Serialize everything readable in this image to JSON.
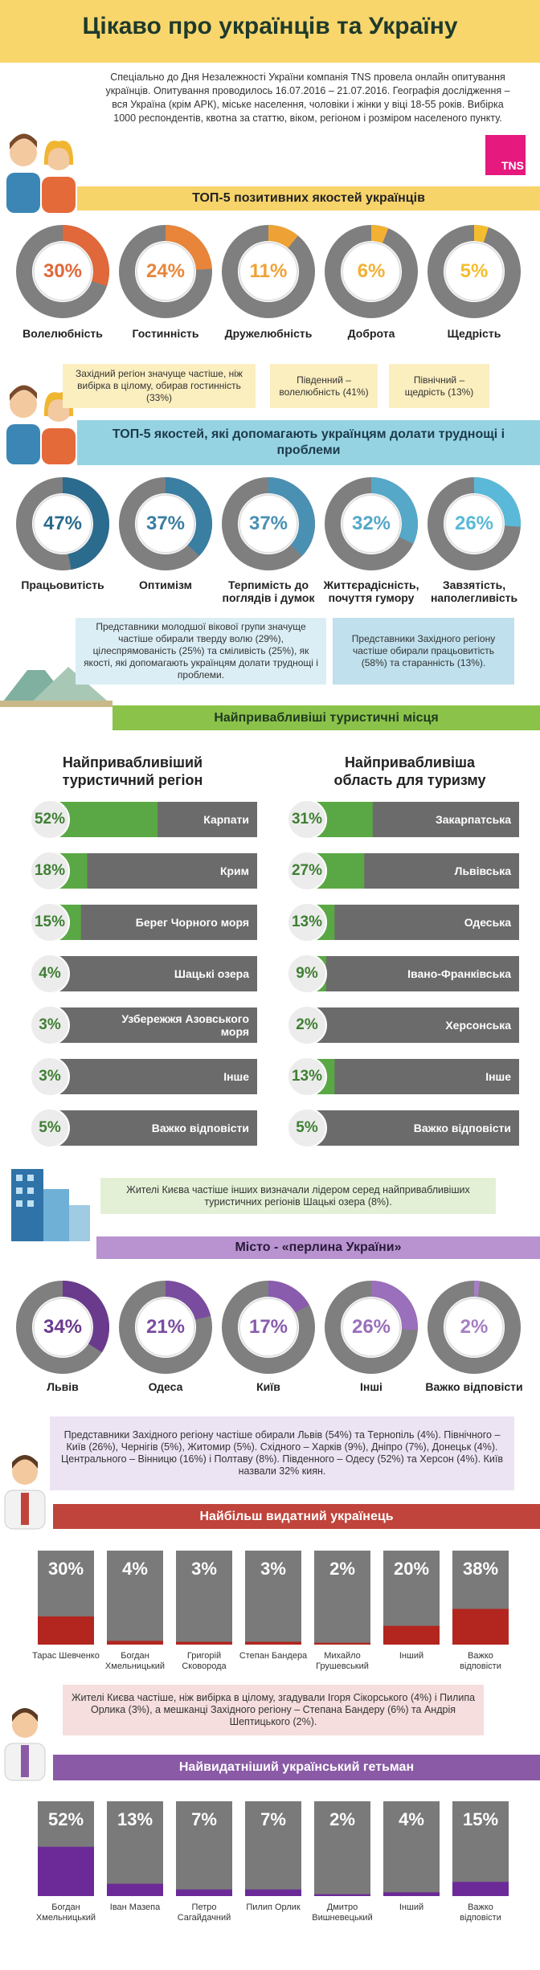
{
  "header": {
    "title": "Цікаво про українців та Україну",
    "intro": "Спеціально до Дня Незалежності України компанія TNS провела онлайн опитування українців. Опитування проводилось 16.07.2016 – 21.07.2016. Географія дослідження – вся Україна (крім АРК), міське населення, чоловіки і жінки у віці 18-55 років. Вибірка 1000 респондентів, квотна за статтю, віком, регіоном і розміром населеного пункту.",
    "logo": "TNS"
  },
  "positive_qualities": {
    "title": "ТОП-5 позитивних якостей українців",
    "items": [
      {
        "label": "Волелюбність",
        "value": 30,
        "value_label": "30%",
        "color": "#e0683a"
      },
      {
        "label": "Гостинність",
        "value": 24,
        "value_label": "24%",
        "color": "#e8853a"
      },
      {
        "label": "Дружелюбність",
        "value": 11,
        "value_label": "11%",
        "color": "#eea236"
      },
      {
        "label": "Доброта",
        "value": 6,
        "value_label": "6%",
        "color": "#f2b133"
      },
      {
        "label": "Щедрість",
        "value": 5,
        "value_label": "5%",
        "color": "#f4bd30"
      }
    ],
    "notes": [
      "Західний регіон значуще частіше, ніж вибірка в цілому, обирав гостинність (33%)",
      "Південний – волелюбність (41%)",
      "Північний – щедрість (13%)"
    ]
  },
  "coping_qualities": {
    "title": "ТОП-5 якостей, які допомагають українцям долати труднощі і проблеми",
    "items": [
      {
        "label": "Працьовитість",
        "value": 47,
        "value_label": "47%",
        "color": "#2b6b8e"
      },
      {
        "label": "Оптимізм",
        "value": 37,
        "value_label": "37%",
        "color": "#3a7ea2"
      },
      {
        "label": "Терпимість до поглядів і думок",
        "value": 37,
        "value_label": "37%",
        "color": "#4a90b3"
      },
      {
        "label": "Життєрадісність, почуття гумору",
        "value": 32,
        "value_label": "32%",
        "color": "#55a8c8"
      },
      {
        "label": "Завзятість, наполегливість",
        "value": 26,
        "value_label": "26%",
        "color": "#5ab9d8"
      }
    ],
    "notes": [
      "Представники молодшої вікової групи значуще частіше обирали тверду волю (29%), цілеспрямованість (25%) та сміливість (25%), як якості, які допомагають українцям долати труднощі і проблеми.",
      "Представники Західного регіону частіше обирали працьовитість (58%) та старанність (13%)."
    ]
  },
  "tourism": {
    "title": "Найпривабливіші туристичні місця",
    "color": "#5aa845",
    "region": {
      "title": "Найпривабливіший туристичний регіон",
      "items": [
        {
          "label": "Карпати",
          "value": 52,
          "value_label": "52%"
        },
        {
          "label": "Крим",
          "value": 18,
          "value_label": "18%"
        },
        {
          "label": "Берег Чорного моря",
          "value": 15,
          "value_label": "15%"
        },
        {
          "label": "Шацькі озера",
          "value": 4,
          "value_label": "4%"
        },
        {
          "label": "Узбережжя Азовського моря",
          "value": 3,
          "value_label": "3%"
        },
        {
          "label": "Інше",
          "value": 3,
          "value_label": "3%"
        },
        {
          "label": "Важко відповісти",
          "value": 5,
          "value_label": "5%"
        }
      ]
    },
    "oblast": {
      "title": "Найпривабливіша область для туризму",
      "items": [
        {
          "label": "Закарпатська",
          "value": 31,
          "value_label": "31%"
        },
        {
          "label": "Львівська",
          "value": 27,
          "value_label": "27%"
        },
        {
          "label": "Одеська",
          "value": 13,
          "value_label": "13%"
        },
        {
          "label": "Івано-Франківська",
          "value": 9,
          "value_label": "9%"
        },
        {
          "label": "Херсонська",
          "value": 2,
          "value_label": "2%"
        },
        {
          "label": "Інше",
          "value": 13,
          "value_label": "13%"
        },
        {
          "label": "Важко відповісти",
          "value": 5,
          "value_label": "5%"
        }
      ]
    },
    "note": "Жителі Києва частіше інших визначали лідером серед найпривабливіших туристичних регіонів Шацькі озера (8%)."
  },
  "city": {
    "title": "Місто - «перлина України»",
    "items": [
      {
        "label": "Львів",
        "value": 34,
        "value_label": "34%",
        "color": "#6a3b8d"
      },
      {
        "label": "Одеса",
        "value": 21,
        "value_label": "21%",
        "color": "#7a4c9f"
      },
      {
        "label": "Київ",
        "value": 17,
        "value_label": "17%",
        "color": "#895cad"
      },
      {
        "label": "Інші",
        "value": 26,
        "value_label": "26%",
        "color": "#9a6fbb"
      },
      {
        "label": "Важко відповісти",
        "value": 2,
        "value_label": "2%",
        "color": "#a67fc4"
      }
    ],
    "note": "Представники Західного регіону частіше обирали Львів (54%) та Тернопіль (4%). Північного – Київ (26%), Чернігів (5%), Житомир (5%). Східного – Харків (9%), Дніпро (7%), Донецьк (4%). Центрального – Вінницю (16%) і Полтаву (8%). Південного – Одесу (52%) та Херсон (4%). Київ назвали 32% киян."
  },
  "prominent_ukrainian": {
    "title": "Найбільш видатний українець",
    "color": "#b2261f",
    "items": [
      {
        "label": "Тарас Шевченко",
        "value": 30,
        "value_label": "30%"
      },
      {
        "label": "Богдан Хмельницький",
        "value": 4,
        "value_label": "4%"
      },
      {
        "label": "Григорій Сковорода",
        "value": 3,
        "value_label": "3%"
      },
      {
        "label": "Степан Бандера",
        "value": 3,
        "value_label": "3%"
      },
      {
        "label": "Михайло Грушевський",
        "value": 2,
        "value_label": "2%"
      },
      {
        "label": "Інший",
        "value": 20,
        "value_label": "20%"
      },
      {
        "label": "Важко відповісти",
        "value": 38,
        "value_label": "38%"
      }
    ],
    "note": "Жителі Києва частіше, ніж вибірка в цілому, згадували Ігоря Сікорського (4%) і Пилипа Орлика (3%), а мешканці Західного регіону – Степана Бандеру (6%) та Андрія Шептицького (2%)."
  },
  "hetman": {
    "title": "Найвидатніший український гетьман",
    "color": "#6b2a98",
    "items": [
      {
        "label": "Богдан Хмельницький",
        "value": 52,
        "value_label": "52%"
      },
      {
        "label": "Іван Мазепа",
        "value": 13,
        "value_label": "13%"
      },
      {
        "label": "Петро Сагайдачний",
        "value": 7,
        "value_label": "7%"
      },
      {
        "label": "Пилип Орлик",
        "value": 7,
        "value_label": "7%"
      },
      {
        "label": "Дмитро Вишневецький",
        "value": 2,
        "value_label": "2%"
      },
      {
        "label": "Інший",
        "value": 4,
        "value_label": "4%"
      },
      {
        "label": "Важко відповісти",
        "value": 15,
        "value_label": "15%"
      }
    ]
  }
}
